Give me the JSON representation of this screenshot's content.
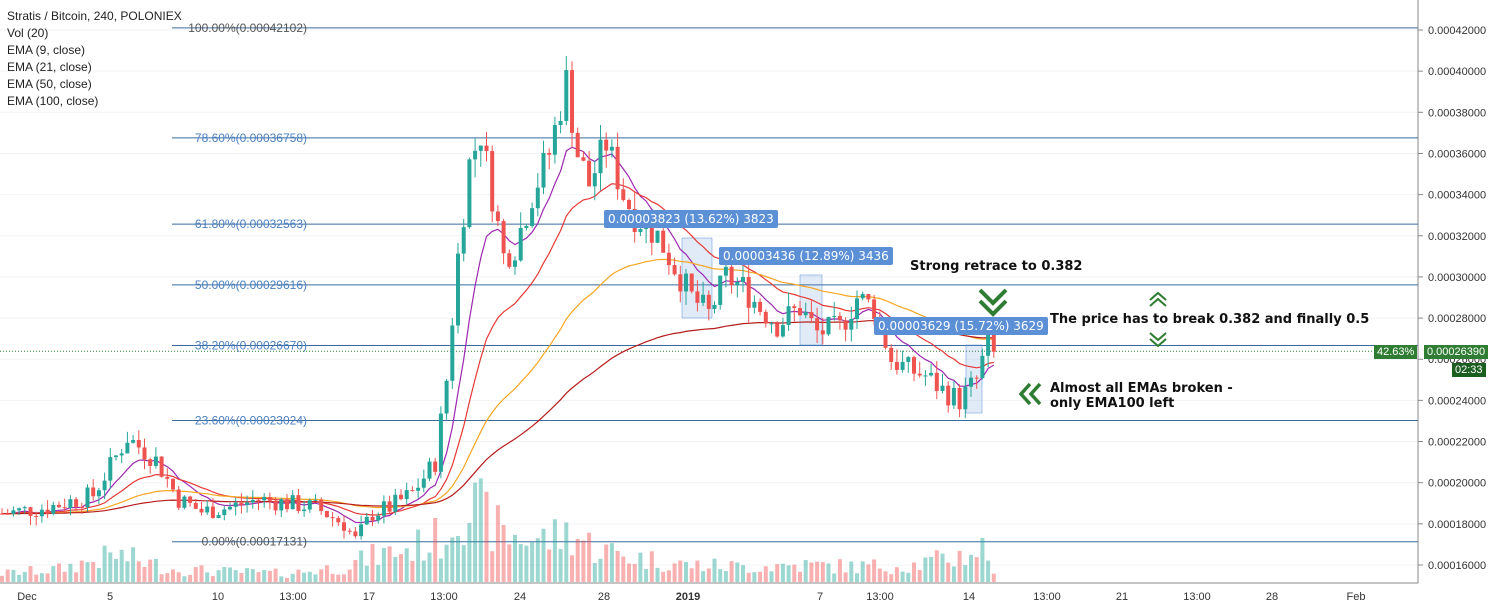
{
  "legend": {
    "title": "Stratis / Bitcoin, 240, POLONIEX",
    "items": [
      "Vol (20)",
      "EMA (9, close)",
      "EMA (21, close)",
      "EMA (50, close)",
      "EMA (100, close)"
    ]
  },
  "annotations": {
    "m1": "0.00003823 (13.62%) 3823",
    "m2": "0.00003436 (12.89%) 3436",
    "m3": "0.00003629 (15.72%) 3629",
    "retrace": "Strong retrace to 0.382",
    "break_line": "The price has to break 0.382 and finally 0.5",
    "emas_1": "Almost all EMAs broken -",
    "emas_2": "only EMA100 left"
  },
  "price_tag": {
    "left": "42.63%",
    "price": "0.00026390",
    "time": "02:33"
  },
  "colors": {
    "up": "#26a69a",
    "down": "#ef5350",
    "ema9": "#9c27b0",
    "ema21": "#e53935",
    "ema50": "#f5a623",
    "ema100": "#b71c1c",
    "fib": "#3a6a9e",
    "green_arrow": "#2e7d32"
  },
  "chart_data": {
    "type": "candlestick",
    "y_axis": {
      "min": 0.000155,
      "max": 0.00042,
      "side": "right",
      "ticks": [
        "0.00016000",
        "0.00018000",
        "0.00020000",
        "0.00022000",
        "0.00024000",
        "0.00026000",
        "0.00028000",
        "0.00030000",
        "0.00032000",
        "0.00034000",
        "0.00036000",
        "0.00038000",
        "0.00040000",
        "0.00042000"
      ]
    },
    "x_axis": {
      "ticks": [
        "Dec",
        "5",
        "10",
        "13:00",
        "17",
        "13:00",
        "24",
        "28",
        "2019",
        "7",
        "13:00",
        "14",
        "13:00",
        "21",
        "13:00",
        "28",
        "Feb"
      ]
    },
    "fib_levels": [
      {
        "label": "100.00%(0.00042102)",
        "value": 0.00042102
      },
      {
        "label": "78.60%(0.00036758)",
        "value": 0.00036758
      },
      {
        "label": "61.80%(0.00032563)",
        "value": 0.00032563
      },
      {
        "label": "50.00%(0.00029616)",
        "value": 0.00029616
      },
      {
        "label": "38.20%(0.00026670)",
        "value": 0.0002667
      },
      {
        "label": "23.60%(0.00023024)",
        "value": 0.00023024
      },
      {
        "label": "0.00%(0.00017131)",
        "value": 0.00017131
      }
    ],
    "price_path": [
      [
        0,
        0.000185
      ],
      [
        8,
        0.000188
      ],
      [
        16,
        0.000194
      ],
      [
        22,
        0.000222
      ],
      [
        27,
        0.000211
      ],
      [
        31,
        0.000192
      ],
      [
        35,
        0.000186
      ],
      [
        40,
        0.000188
      ],
      [
        45,
        0.000192
      ],
      [
        50,
        0.00019
      ],
      [
        55,
        0.000188
      ],
      [
        60,
        0.00018
      ],
      [
        62,
        0.000172
      ],
      [
        65,
        0.000185
      ],
      [
        68,
        0.000188
      ],
      [
        72,
        0.000195
      ],
      [
        76,
        0.00021
      ],
      [
        78,
        0.00025
      ],
      [
        80,
        0.00031
      ],
      [
        82,
        0.000355
      ],
      [
        84,
        0.00037
      ],
      [
        86,
        0.00034
      ],
      [
        88,
        0.00031
      ],
      [
        90,
        0.000315
      ],
      [
        93,
        0.00034
      ],
      [
        96,
        0.00036
      ],
      [
        99,
        0.000395
      ],
      [
        101,
        0.00036
      ],
      [
        103,
        0.000345
      ],
      [
        106,
        0.000365
      ],
      [
        109,
        0.00034
      ],
      [
        111,
        0.00033
      ],
      [
        115,
        0.00032
      ],
      [
        118,
        0.000305
      ],
      [
        121,
        0.00029
      ],
      [
        124,
        0.000282
      ],
      [
        127,
        0.0003
      ],
      [
        130,
        0.000295
      ],
      [
        133,
        0.000285
      ],
      [
        136,
        0.000277
      ],
      [
        140,
        0.000285
      ],
      [
        143,
        0.000273
      ],
      [
        147,
        0.000275
      ],
      [
        150,
        0.00029
      ],
      [
        153,
        0.000285
      ],
      [
        156,
        0.00026
      ],
      [
        159,
        0.000255
      ],
      [
        162,
        0.000252
      ],
      [
        165,
        0.000245
      ],
      [
        168,
        0.00024
      ],
      [
        171,
        0.00025
      ],
      [
        173,
        0.000268
      ],
      [
        174,
        0.000262
      ]
    ],
    "volume_path": [
      [
        0,
        0.1
      ],
      [
        10,
        0.15
      ],
      [
        20,
        0.32
      ],
      [
        30,
        0.15
      ],
      [
        40,
        0.12
      ],
      [
        50,
        0.1
      ],
      [
        60,
        0.18
      ],
      [
        65,
        0.3
      ],
      [
        72,
        0.4
      ],
      [
        78,
        0.55
      ],
      [
        80,
        0.95
      ],
      [
        84,
        0.8
      ],
      [
        88,
        0.55
      ],
      [
        95,
        0.5
      ],
      [
        100,
        0.58
      ],
      [
        104,
        0.4
      ],
      [
        110,
        0.3
      ],
      [
        120,
        0.2
      ],
      [
        130,
        0.18
      ],
      [
        140,
        0.2
      ],
      [
        150,
        0.18
      ],
      [
        160,
        0.2
      ],
      [
        168,
        0.3
      ],
      [
        172,
        0.4
      ],
      [
        174,
        0.15
      ]
    ]
  }
}
